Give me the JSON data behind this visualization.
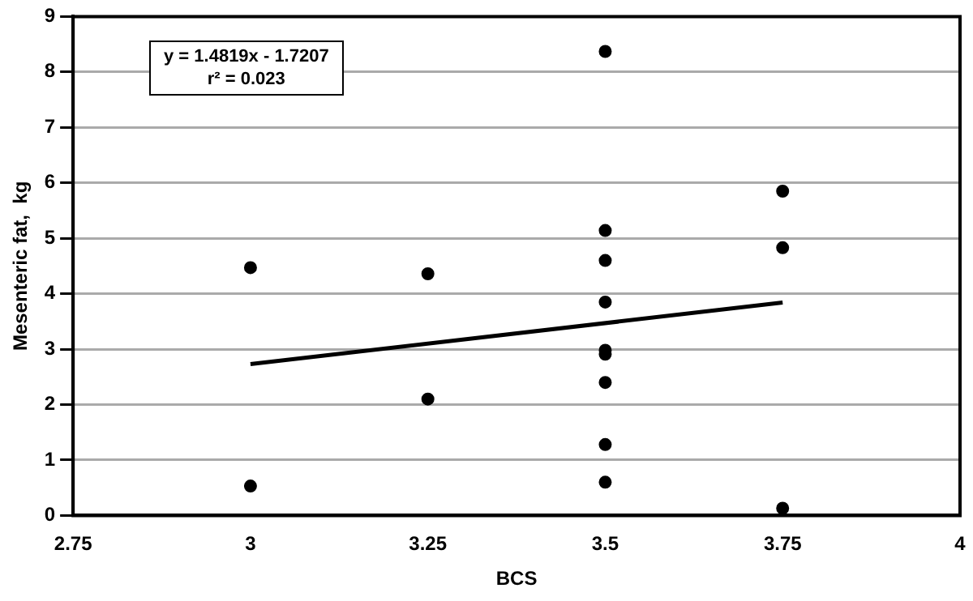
{
  "chart_data": {
    "type": "scatter",
    "xlabel": "BCS",
    "ylabel": "Mesenteric fat,  kg",
    "annotations": [
      "y = 1.4819x - 1.7207",
      "r² = 0.023"
    ],
    "xlim": [
      2.75,
      4
    ],
    "xticks": [
      2.75,
      3,
      3.25,
      3.5,
      3.75,
      4
    ],
    "ylim": [
      0,
      9
    ],
    "yticks": [
      0,
      1,
      2,
      3,
      4,
      5,
      6,
      7,
      8,
      9
    ],
    "grid": "y",
    "legend": false,
    "marker": "circle",
    "series": [
      {
        "color": "#000000",
        "x": [
          3,
          3,
          3.25,
          3.25,
          3.5,
          3.5,
          3.5,
          3.5,
          3.5,
          3.5,
          3.5,
          3.5,
          3.5,
          3.75,
          3.75,
          3.75
        ],
        "values": [
          4.47,
          0.53,
          4.36,
          2.1,
          8.37,
          5.14,
          4.6,
          3.85,
          2.98,
          2.91,
          2.4,
          1.28,
          0.6,
          5.85,
          4.83,
          0.13
        ]
      },
      {
        "type": "line",
        "marker": "none",
        "color": "#000000",
        "x": [
          3,
          3.75
        ],
        "values": [
          2.73,
          3.84
        ]
      }
    ]
  }
}
